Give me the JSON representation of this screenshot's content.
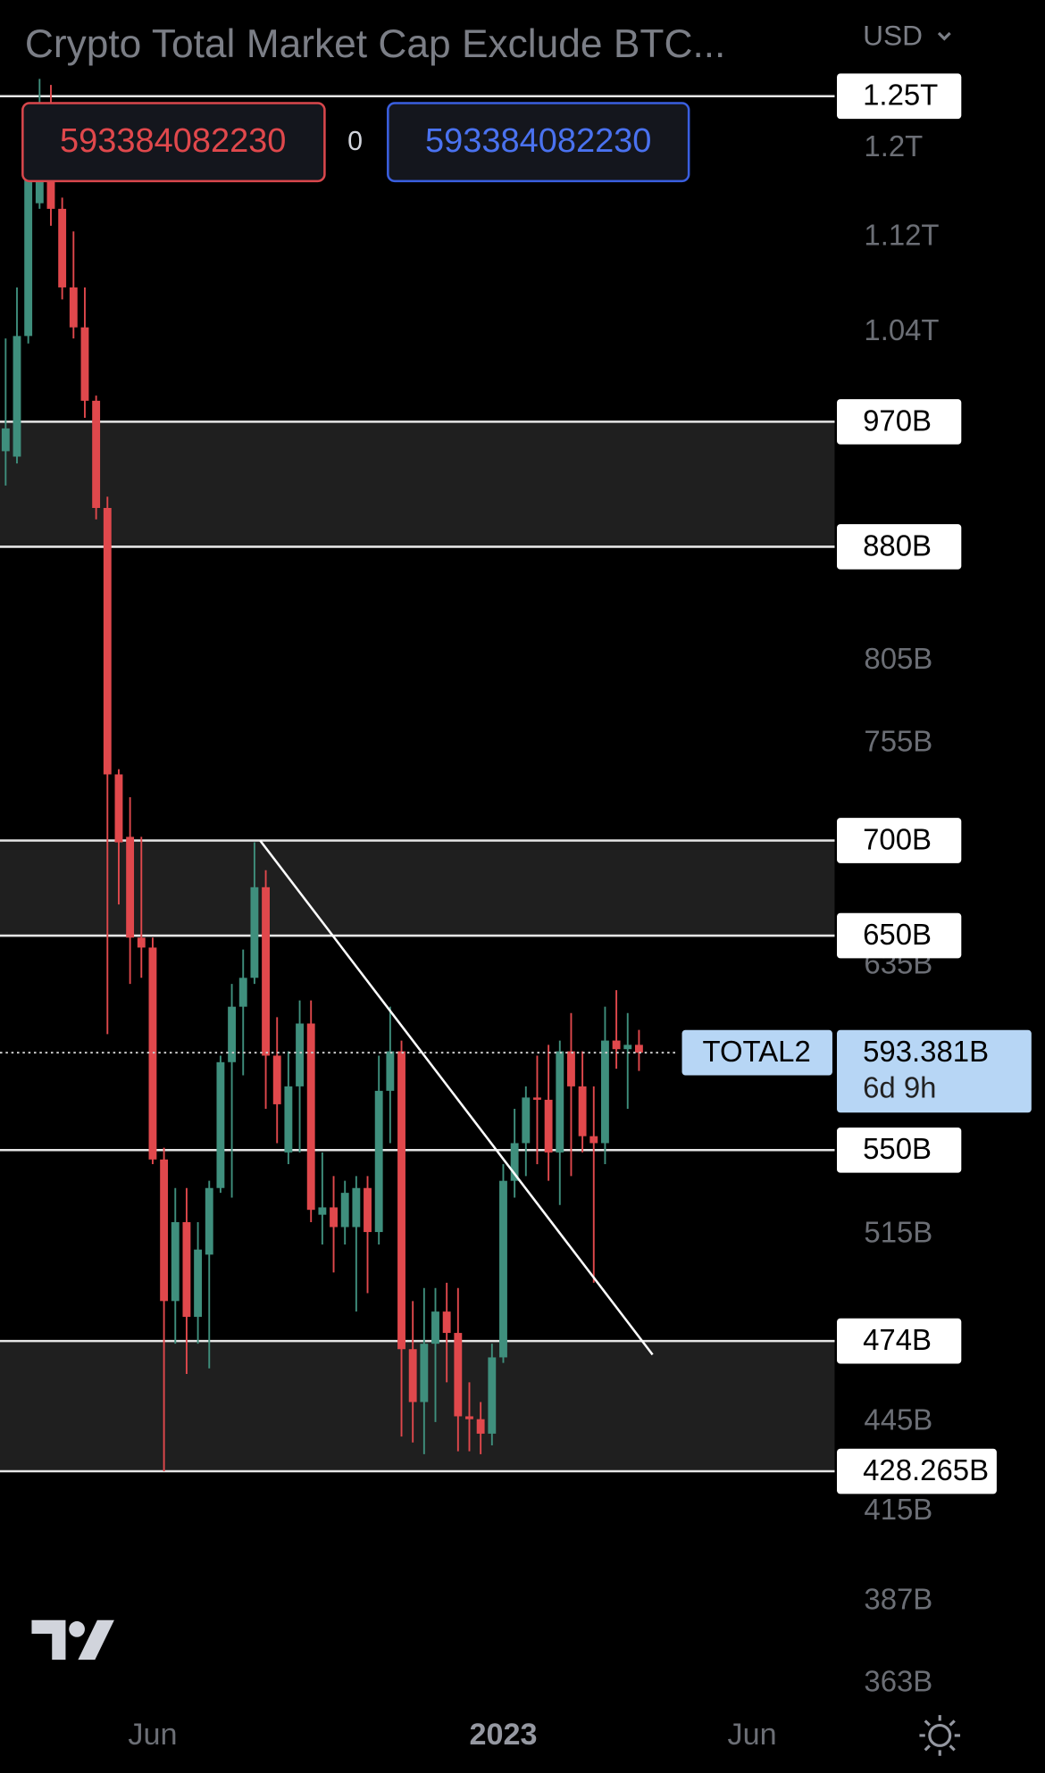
{
  "chart_data": {
    "type": "candlestick",
    "title": "Crypto Total Market Cap Exclude BTC...",
    "currency": "USD",
    "order_panel": {
      "sell": "593384082230",
      "spread": "0",
      "buy": "593384082230"
    },
    "log_scale": true,
    "up_color": "#3f8f7d",
    "down_color": "#e0484c",
    "ylim": [
      357,
      1347
    ],
    "yticks": [
      {
        "value": 1200,
        "label": "1.2T"
      },
      {
        "value": 1120,
        "label": "1.12T"
      },
      {
        "value": 1040,
        "label": "1.04T"
      },
      {
        "value": 805,
        "label": "805B"
      },
      {
        "value": 755,
        "label": "755B"
      },
      {
        "value": 635,
        "label": "635B"
      },
      {
        "value": 515,
        "label": "515B"
      },
      {
        "value": 445,
        "label": "445B"
      },
      {
        "value": 415,
        "label": "415B"
      },
      {
        "value": 387,
        "label": "387B"
      },
      {
        "value": 363,
        "label": "363B"
      }
    ],
    "levels": [
      {
        "value": 1250,
        "label": "1.25T"
      },
      {
        "value": 970,
        "label": "970B"
      },
      {
        "value": 880,
        "label": "880B"
      },
      {
        "value": 700,
        "label": "700B"
      },
      {
        "value": 650,
        "label": "650B"
      },
      {
        "value": 550,
        "label": "550B"
      },
      {
        "value": 474,
        "label": "474B"
      },
      {
        "value": 428.265,
        "label": "428.265B"
      }
    ],
    "zones": [
      [
        880,
        970
      ],
      [
        650,
        700
      ],
      [
        428.265,
        474
      ]
    ],
    "trendline": {
      "x": [
        22.5,
        57.2
      ],
      "values": [
        700,
        469
      ]
    },
    "current_price": {
      "name": "TOTAL2",
      "value": 593.381,
      "label": "593.381B",
      "countdown": "6d 9h"
    },
    "categories": [
      null,
      null,
      null,
      null,
      null,
      null,
      null,
      null,
      null,
      null,
      null,
      null,
      null,
      "Jun",
      null,
      null,
      null,
      null,
      null,
      null,
      null,
      null,
      null,
      null,
      null,
      null,
      null,
      null,
      null,
      null,
      null,
      null,
      null,
      null,
      null,
      null,
      null,
      null,
      null,
      null,
      null,
      null,
      null,
      null,
      "2023",
      null,
      null,
      null,
      null,
      null,
      null,
      null,
      null,
      null,
      null,
      null,
      null,
      null,
      null,
      null,
      null,
      null,
      null,
      null,
      null,
      null,
      "Jun",
      null
    ],
    "open": [
      948,
      944,
      1037,
      1150,
      1234,
      1145,
      1077,
      1044,
      986,
      907,
      737,
      702,
      649,
      644,
      546,
      489,
      520,
      483,
      507,
      534,
      589,
      615,
      629,
      675,
      592,
      549,
      578,
      607,
      523,
      526,
      518,
      518,
      534,
      516,
      576,
      594,
      471,
      452,
      473,
      485,
      477,
      447,
      446,
      441,
      468,
      537,
      553,
      573,
      572,
      549,
      594,
      578,
      556,
      553,
      599,
      595,
      597,
      null,
      null,
      null,
      null,
      null,
      null,
      null,
      null,
      null,
      null,
      null
    ],
    "high": [
      1035,
      1077,
      1201,
      1267,
      1261,
      1155,
      1125,
      1077,
      990,
      915,
      740,
      724,
      702,
      649,
      551,
      534,
      534,
      520,
      537,
      592,
      626,
      643,
      699,
      684,
      610,
      594,
      618,
      618,
      549,
      539,
      537,
      539,
      539,
      592,
      615,
      599,
      489,
      494,
      494,
      496,
      494,
      459,
      452,
      473,
      544,
      568,
      578,
      592,
      597,
      599,
      612,
      594,
      578,
      615,
      623,
      612,
      604,
      null,
      null,
      null,
      null,
      null,
      null,
      null,
      null,
      null,
      null,
      null
    ],
    "low": [
      923,
      939,
      1031,
      1145,
      1130,
      1067,
      1035,
      973,
      899,
      602,
      666,
      626,
      629,
      544,
      428.265,
      473,
      462,
      473,
      464,
      532,
      530,
      583,
      626,
      568,
      553,
      544,
      549,
      520,
      511,
      500,
      511,
      485,
      492,
      511,
      553,
      440,
      438,
      434,
      445,
      459,
      435,
      435,
      434,
      437,
      466,
      530,
      539,
      544,
      537,
      527,
      539,
      549,
      496,
      544,
      586,
      568,
      585,
      null,
      null,
      null,
      null,
      null,
      null,
      null,
      null,
      null,
      null,
      null
    ],
    "close": [
      965,
      1037,
      1180,
      1234,
      1145,
      1077,
      1044,
      986,
      907,
      737,
      699,
      649,
      644,
      546,
      489,
      520,
      483,
      509,
      534,
      589,
      615,
      629,
      675,
      592,
      570,
      578,
      607,
      525,
      526,
      518,
      532,
      534,
      516,
      576,
      594,
      471,
      452,
      473,
      485,
      477,
      447,
      446,
      441,
      468,
      537,
      553,
      573,
      572,
      549,
      594,
      578,
      556,
      553,
      599,
      595,
      597,
      593.381,
      null,
      null,
      null,
      null,
      null,
      null,
      null,
      null,
      null,
      null,
      null
    ]
  }
}
